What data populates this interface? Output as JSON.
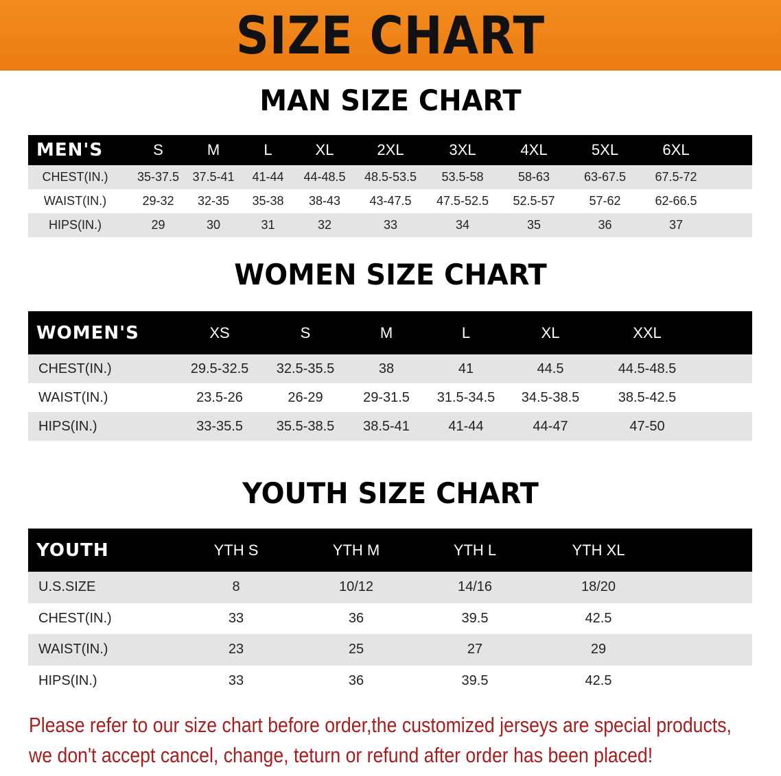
{
  "banner_title": "SIZE CHART",
  "colors": {
    "banner": "#ee8418",
    "header_row": "#000000",
    "stripe": "#e4e4e4",
    "notice": "#a81d1d"
  },
  "men": {
    "title": "MAN SIZE CHART",
    "header": [
      "MEN'S",
      "S",
      "M",
      "L",
      "XL",
      "2XL",
      "3XL",
      "4XL",
      "5XL",
      "6XL"
    ],
    "rows": [
      [
        "CHEST(IN.)",
        "35-37.5",
        "37.5-41",
        "41-44",
        "44-48.5",
        "48.5-53.5",
        "53.5-58",
        "58-63",
        "63-67.5",
        "67.5-72"
      ],
      [
        "WAIST(IN.)",
        "29-32",
        "32-35",
        "35-38",
        "38-43",
        "43-47.5",
        "47.5-52.5",
        "52.5-57",
        "57-62",
        "62-66.5"
      ],
      [
        "HIPS(IN.)",
        "29",
        "30",
        "31",
        "32",
        "33",
        "34",
        "35",
        "36",
        "37"
      ]
    ]
  },
  "women": {
    "title": "WOMEN SIZE CHART",
    "header": [
      "WOMEN'S",
      "XS",
      "S",
      "M",
      "L",
      "XL",
      "XXL"
    ],
    "rows": [
      [
        "CHEST(IN.)",
        "29.5-32.5",
        "32.5-35.5",
        "38",
        "41",
        "44.5",
        "44.5-48.5"
      ],
      [
        "WAIST(IN.)",
        "23.5-26",
        "26-29",
        "29-31.5",
        "31.5-34.5",
        "34.5-38.5",
        "38.5-42.5"
      ],
      [
        "HIPS(IN.)",
        "33-35.5",
        "35.5-38.5",
        "38.5-41",
        "41-44",
        "44-47",
        "47-50"
      ]
    ]
  },
  "youth": {
    "title": "YOUTH SIZE CHART",
    "header": [
      "YOUTH",
      "YTH S",
      "YTH M",
      "YTH L",
      "YTH XL"
    ],
    "rows": [
      [
        "U.S.SIZE",
        "8",
        "10/12",
        "14/16",
        "18/20"
      ],
      [
        "CHEST(IN.)",
        "33",
        "36",
        "39.5",
        "42.5"
      ],
      [
        "WAIST(IN.)",
        "23",
        "25",
        "27",
        "29"
      ],
      [
        "HIPS(IN.)",
        "33",
        "36",
        "39.5",
        "42.5"
      ]
    ]
  },
  "notice": {
    "line1": "Please refer to our size chart before order,the customized jerseys are special products,",
    "line2": "we don't accept cancel, change, teturn or refund after order has been placed!"
  }
}
